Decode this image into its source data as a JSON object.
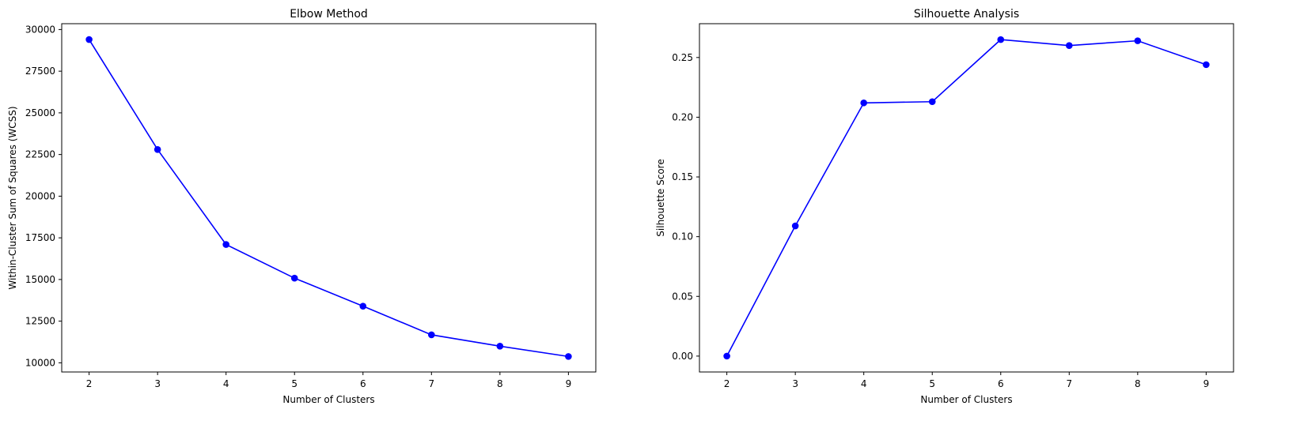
{
  "chart_data": [
    {
      "type": "line",
      "title": "Elbow Method",
      "xlabel": "Number of Clusters",
      "ylabel": "Within-Cluster Sum of Squares (WCSS)",
      "x": [
        2,
        3,
        4,
        5,
        6,
        7,
        8,
        9
      ],
      "series": [
        {
          "values": [
            29400,
            22800,
            17100,
            15080,
            13400,
            11680,
            11000,
            10380
          ],
          "color": "#0000ff",
          "marker": "circle"
        }
      ],
      "xlim": [
        1.6,
        9.4
      ],
      "ylim": [
        9450,
        30350
      ],
      "xticks": [
        2,
        3,
        4,
        5,
        6,
        7,
        8,
        9
      ],
      "yticks": [
        10000,
        12500,
        15000,
        17500,
        20000,
        22500,
        25000,
        27500,
        30000
      ],
      "grid": false
    },
    {
      "type": "line",
      "title": "Silhouette Analysis",
      "xlabel": "Number of Clusters",
      "ylabel": "Silhouette Score",
      "x": [
        2,
        3,
        4,
        5,
        6,
        7,
        8,
        9
      ],
      "series": [
        {
          "values": [
            0.0,
            0.109,
            0.212,
            0.213,
            0.265,
            0.26,
            0.264,
            0.244
          ],
          "color": "#0000ff",
          "marker": "circle"
        }
      ],
      "xlim": [
        1.6,
        9.4
      ],
      "ylim": [
        -0.0133,
        0.2783
      ],
      "xticks": [
        2,
        3,
        4,
        5,
        6,
        7,
        8,
        9
      ],
      "ytick_labels": [
        "0.00",
        "0.05",
        "0.10",
        "0.15",
        "0.20",
        "0.25"
      ],
      "yticks": [
        0.0,
        0.05,
        0.1,
        0.15,
        0.2,
        0.25
      ],
      "grid": false
    }
  ]
}
